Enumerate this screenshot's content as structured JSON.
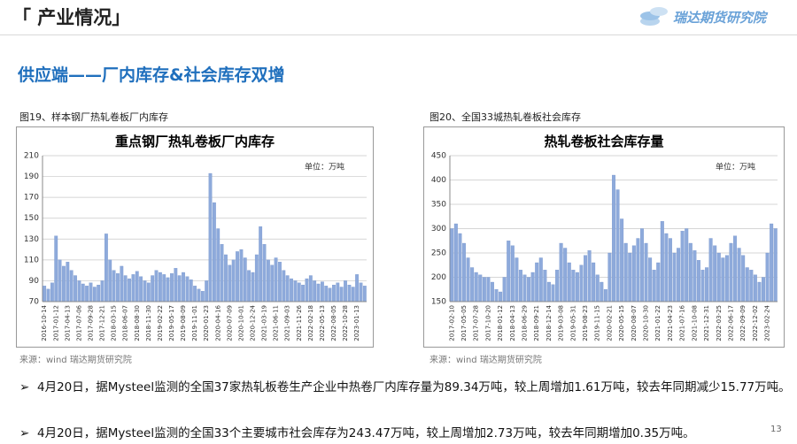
{
  "header": {
    "title": "「 产业情况」",
    "logo": "瑞达期货研究院"
  },
  "section_title": "供应端——厂内库存&社会库存双增",
  "chart_data": [
    {
      "type": "bar",
      "caption": "图19、样本钢厂热轧卷板厂内库存",
      "title": "重点钢厂热轧卷板厂内库存",
      "unit": "单位：万吨",
      "source": "来源：wind   瑞达期货研究院",
      "color": "#8eaadb",
      "categories": [
        "2016-10-14",
        null,
        null,
        "2017-01-12",
        null,
        null,
        "2017-04-13",
        null,
        null,
        "2017-07-06",
        null,
        null,
        "2017-09-28",
        null,
        null,
        "2017-12-21",
        null,
        null,
        "2018-03-15",
        null,
        null,
        "2018-06-07",
        null,
        null,
        "2018-08-30",
        null,
        null,
        "2018-11-30",
        null,
        null,
        "2019-02-22",
        null,
        null,
        "2019-05-17",
        null,
        null,
        "2019-08-09",
        null,
        null,
        "2019-11-01",
        null,
        null,
        "2020-01-23",
        null,
        null,
        "2020-04-16",
        null,
        null,
        "2020-07-09",
        null,
        null,
        "2020-10-01",
        null,
        null,
        "2020-12-24",
        null,
        null,
        "2021-03-19",
        null,
        null,
        "2021-06-11",
        null,
        null,
        "2021-09-03",
        null,
        null,
        "2021-11-26",
        null,
        null,
        "2022-02-18",
        null,
        null,
        "2022-05-13",
        null,
        null,
        "2022-08-05",
        null,
        null,
        "2022-10-28",
        null,
        null,
        "2023-01-13",
        null,
        null
      ],
      "values": [
        85,
        82,
        88,
        133,
        110,
        104,
        108,
        100,
        95,
        90,
        87,
        85,
        88,
        84,
        86,
        90,
        135,
        110,
        100,
        97,
        104,
        95,
        92,
        96,
        99,
        94,
        90,
        88,
        95,
        100,
        98,
        96,
        93,
        97,
        102,
        95,
        98,
        94,
        91,
        85,
        82,
        80,
        90,
        193,
        165,
        140,
        125,
        115,
        105,
        110,
        118,
        120,
        112,
        100,
        98,
        115,
        142,
        125,
        110,
        105,
        112,
        108,
        100,
        95,
        92,
        90,
        88,
        86,
        92,
        95,
        90,
        87,
        89,
        85,
        83,
        86,
        88,
        84,
        90,
        86,
        84,
        96,
        88,
        85
      ],
      "ylim": [
        70,
        210
      ],
      "yticks": [
        70,
        90,
        110,
        130,
        150,
        170,
        190,
        210
      ],
      "grid": true
    },
    {
      "type": "bar",
      "caption": "图20、全国33城热轧卷板社会库存",
      "title": "热轧卷板社会库存量",
      "unit": "单位：万吨",
      "source": "来源：wind   瑞达期货研究院",
      "color": "#8eaadb",
      "categories": [
        "2017-02-10",
        null,
        null,
        "2017-05-05",
        null,
        null,
        "2017-07-28",
        null,
        null,
        "2017-10-20",
        null,
        null,
        "2018-01-12",
        null,
        null,
        "2018-04-13",
        null,
        null,
        "2018-06-29",
        null,
        null,
        "2018-09-21",
        null,
        null,
        "2018-12-14",
        null,
        null,
        "2019-03-08",
        null,
        null,
        "2019-05-31",
        null,
        null,
        "2019-08-23",
        null,
        null,
        "2019-11-15",
        null,
        null,
        "2020-02-21",
        null,
        null,
        "2020-05-15",
        null,
        null,
        "2020-08-07",
        null,
        null,
        "2020-10-30",
        null,
        null,
        "2021-01-22",
        null,
        null,
        "2021-04-23",
        null,
        null,
        "2021-07-16",
        null,
        null,
        "2021-10-08",
        null,
        null,
        "2021-12-31",
        null,
        null,
        "2022-03-25",
        null,
        null,
        "2022-06-17",
        null,
        null,
        "2022-09-09",
        null,
        null,
        "2022-12-02",
        null,
        null,
        "2023-02-24",
        null,
        null
      ],
      "values": [
        300,
        310,
        290,
        270,
        240,
        220,
        210,
        205,
        200,
        200,
        190,
        175,
        170,
        200,
        275,
        265,
        240,
        215,
        205,
        200,
        210,
        230,
        240,
        215,
        190,
        185,
        215,
        270,
        260,
        230,
        215,
        210,
        225,
        245,
        255,
        230,
        205,
        190,
        175,
        250,
        410,
        380,
        320,
        270,
        250,
        265,
        280,
        300,
        270,
        240,
        215,
        230,
        315,
        290,
        280,
        250,
        260,
        295,
        300,
        270,
        255,
        235,
        215,
        220,
        280,
        265,
        250,
        240,
        245,
        270,
        285,
        260,
        245,
        220,
        215,
        205,
        190,
        200,
        250,
        310,
        300
      ],
      "ylim": [
        150,
        450
      ],
      "yticks": [
        150,
        200,
        250,
        300,
        350,
        400,
        450
      ],
      "grid": true
    }
  ],
  "bullets": [
    "4月20日，据Mysteel监测的全国37家热轧板卷生产企业中热卷厂内库存量为89.34万吨，较上周增加1.61万吨，较去年同期减少15.77万吨。",
    "4月20日，据Mysteel监测的全国33个主要城市社会库存为243.47万吨，较上周增加2.73万吨，较去年同期增加0.35万吨。"
  ],
  "page_number": "13"
}
